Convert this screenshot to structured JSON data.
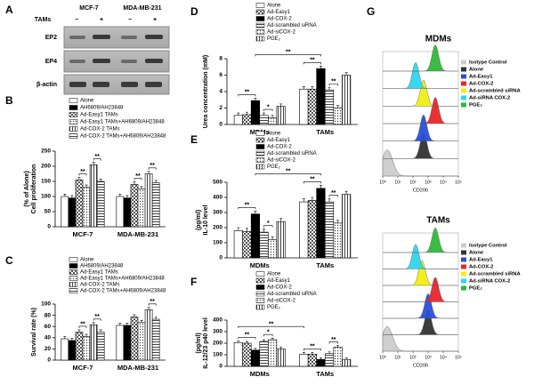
{
  "blot": {
    "panel": "A",
    "groups": [
      "MCF-7",
      "MDA-MB-231"
    ],
    "treatment": "TAMs",
    "conditions": [
      "−",
      "+",
      "−",
      "+"
    ],
    "rows": [
      "EP2",
      "EP4",
      "β-actin"
    ]
  },
  "chart_data": [
    {
      "type": "bar",
      "panel": "B",
      "ylabel": [
        "Cell proliferation",
        "(% of Alone)"
      ],
      "categories": [
        "MCF-7",
        "MDA-MB-231"
      ],
      "ylim": [
        0,
        250
      ],
      "yticks": [
        0,
        50,
        100,
        150,
        200,
        250
      ],
      "series": [
        {
          "name": "Alone",
          "color": "#ffffff",
          "pattern": "none",
          "values": [
            100,
            100
          ],
          "errors": [
            8,
            8
          ]
        },
        {
          "name": "AH6809/AH23848",
          "color": "#000000",
          "pattern": "none",
          "values": [
            95,
            95
          ],
          "errors": [
            8,
            8
          ]
        },
        {
          "name": "Ad-Easy1 TAMs",
          "color": "#555555",
          "pattern": "checker",
          "values": [
            155,
            140
          ],
          "errors": [
            8,
            8
          ]
        },
        {
          "name": "Ad-Easy1 TAMs+AH6809/AH23848",
          "color": "#555555",
          "pattern": "dots",
          "values": [
            130,
            125
          ],
          "errors": [
            8,
            8
          ]
        },
        {
          "name": "Ad-COX-2 TAMs",
          "color": "#555555",
          "pattern": "vstripe",
          "values": [
            205,
            175
          ],
          "errors": [
            8,
            8
          ]
        },
        {
          "name": "Ad-COX-2 TAMs+AH6809/AH23848",
          "color": "#555555",
          "pattern": "hstripe",
          "values": [
            150,
            145
          ],
          "errors": [
            8,
            8
          ]
        }
      ],
      "brackets": [
        {
          "label": "**",
          "from": [
            0,
            2
          ],
          "to": [
            0,
            3
          ]
        },
        {
          "label": "**",
          "from": [
            0,
            4
          ],
          "to": [
            0,
            5
          ]
        },
        {
          "label": "**",
          "from": [
            1,
            2
          ],
          "to": [
            1,
            3
          ]
        },
        {
          "label": "**",
          "from": [
            1,
            4
          ],
          "to": [
            1,
            5
          ]
        }
      ]
    },
    {
      "type": "bar",
      "panel": "C",
      "ylabel": [
        "Survival rate (%)"
      ],
      "categories": [
        "MCF-7",
        "MDA-MB-231"
      ],
      "ylim": [
        0,
        100
      ],
      "yticks": [
        0,
        20,
        40,
        60,
        80,
        100
      ],
      "series": [
        {
          "name": "Alone",
          "color": "#ffffff",
          "pattern": "none",
          "values": [
            38,
            62
          ],
          "errors": [
            4,
            4
          ]
        },
        {
          "name": "AH6809/AH23848",
          "color": "#000000",
          "pattern": "none",
          "values": [
            35,
            62
          ],
          "errors": [
            4,
            4
          ]
        },
        {
          "name": "Ad-Easy1 TAMs",
          "color": "#555555",
          "pattern": "checker",
          "values": [
            50,
            77
          ],
          "errors": [
            4,
            4
          ]
        },
        {
          "name": "Ad-Easy1 TAMs+AH6809/AH23848",
          "color": "#555555",
          "pattern": "dots",
          "values": [
            42,
            67
          ],
          "errors": [
            4,
            4
          ]
        },
        {
          "name": "Ad-COX-2 TAMs",
          "color": "#555555",
          "pattern": "vstripe",
          "values": [
            63,
            90
          ],
          "errors": [
            4,
            4
          ]
        },
        {
          "name": "Ad-COX-2 TAMs+AH6809/AH23848",
          "color": "#555555",
          "pattern": "hstripe",
          "values": [
            50,
            73
          ],
          "errors": [
            4,
            4
          ]
        }
      ],
      "brackets": [
        {
          "label": "**",
          "from": [
            0,
            2
          ],
          "to": [
            0,
            3
          ]
        },
        {
          "label": "**",
          "from": [
            0,
            4
          ],
          "to": [
            0,
            5
          ]
        },
        {
          "label": "**",
          "from": [
            1,
            4
          ],
          "to": [
            1,
            5
          ]
        }
      ]
    },
    {
      "type": "bar",
      "panel": "D",
      "ylabel": [
        "Urea concentration (mM)"
      ],
      "categories": [
        "MDMs",
        "TAMs"
      ],
      "ylim": [
        0,
        8
      ],
      "yticks": [
        0,
        2,
        4,
        6,
        8
      ],
      "series": [
        {
          "name": "Alone",
          "color": "#ffffff",
          "pattern": "none",
          "values": [
            1.1,
            4.3
          ],
          "errors": [
            0.3,
            0.3
          ]
        },
        {
          "name": "Ad-Easy1",
          "color": "#555555",
          "pattern": "checker",
          "values": [
            1.2,
            4.3
          ],
          "errors": [
            0.3,
            0.3
          ]
        },
        {
          "name": "Ad-COX-2",
          "color": "#000000",
          "pattern": "none",
          "values": [
            2.9,
            6.8
          ],
          "errors": [
            0.3,
            0.3
          ]
        },
        {
          "name": "Ad-scrambled siRNA",
          "color": "#555555",
          "pattern": "hstripe",
          "values": [
            1.1,
            4.2
          ],
          "errors": [
            0.3,
            0.3
          ]
        },
        {
          "name": "Ad-siCOX-2",
          "color": "#555555",
          "pattern": "dots",
          "values": [
            0.8,
            2.0
          ],
          "errors": [
            0.3,
            0.3
          ]
        },
        {
          "name": "PGE₂",
          "color": "#555555",
          "pattern": "vstripe",
          "values": [
            2.2,
            6.0
          ],
          "errors": [
            0.3,
            0.3
          ]
        }
      ],
      "brackets": [
        {
          "label": "**",
          "from": [
            0,
            0
          ],
          "to": [
            0,
            2
          ]
        },
        {
          "label": "*",
          "from": [
            0,
            3
          ],
          "to": [
            0,
            4
          ]
        },
        {
          "label": "**",
          "from": [
            1,
            0
          ],
          "to": [
            1,
            2
          ]
        },
        {
          "label": "**",
          "from": [
            1,
            3
          ],
          "to": [
            1,
            4
          ]
        },
        {
          "label": "**",
          "from": [
            0,
            2
          ],
          "to": [
            1,
            2
          ]
        }
      ]
    },
    {
      "type": "bar",
      "panel": "E",
      "ylabel": [
        "IL-10 level",
        "(pg/ml)"
      ],
      "categories": [
        "MDMs",
        "TAMs"
      ],
      "ylim": [
        0,
        500
      ],
      "yticks": [
        0,
        100,
        200,
        300,
        400,
        500
      ],
      "series": [
        {
          "name": "Alone",
          "color": "#ffffff",
          "pattern": "none",
          "values": [
            180,
            370
          ],
          "errors": [
            20,
            20
          ]
        },
        {
          "name": "Ad-Easy1",
          "color": "#555555",
          "pattern": "checker",
          "values": [
            175,
            380
          ],
          "errors": [
            20,
            20
          ]
        },
        {
          "name": "Ad-COX-2",
          "color": "#000000",
          "pattern": "none",
          "values": [
            290,
            460
          ],
          "errors": [
            20,
            20
          ]
        },
        {
          "name": "Ad-scrambled siRNA",
          "color": "#555555",
          "pattern": "hstripe",
          "values": [
            170,
            370
          ],
          "errors": [
            20,
            20
          ]
        },
        {
          "name": "Ad-siCOX-2",
          "color": "#555555",
          "pattern": "dots",
          "values": [
            120,
            230
          ],
          "errors": [
            20,
            20
          ]
        },
        {
          "name": "PGE₂",
          "color": "#555555",
          "pattern": "vstripe",
          "values": [
            240,
            420
          ],
          "errors": [
            20,
            20
          ]
        }
      ],
      "brackets": [
        {
          "label": "**",
          "from": [
            0,
            0
          ],
          "to": [
            0,
            2
          ]
        },
        {
          "label": "*",
          "from": [
            0,
            3
          ],
          "to": [
            0,
            4
          ]
        },
        {
          "label": "**",
          "from": [
            1,
            0
          ],
          "to": [
            1,
            2
          ]
        },
        {
          "label": "**",
          "from": [
            1,
            3
          ],
          "to": [
            1,
            4
          ]
        },
        {
          "label": "**",
          "from": [
            0,
            2
          ],
          "to": [
            1,
            2
          ]
        }
      ]
    },
    {
      "type": "bar",
      "panel": "F",
      "ylabel": [
        "IL-12/23  p40 level",
        "(pg/ml)"
      ],
      "categories": [
        "MDMs",
        "TAMs"
      ],
      "ylim": [
        0,
        400
      ],
      "yticks": [
        0,
        100,
        200,
        300,
        400
      ],
      "series": [
        {
          "name": "Alone",
          "color": "#ffffff",
          "pattern": "none",
          "values": [
            205,
            105
          ],
          "errors": [
            15,
            15
          ]
        },
        {
          "name": "Ad-Easy1",
          "color": "#555555",
          "pattern": "checker",
          "values": [
            200,
            105
          ],
          "errors": [
            15,
            15
          ]
        },
        {
          "name": "Ad-COX-2",
          "color": "#000000",
          "pattern": "none",
          "values": [
            140,
            60
          ],
          "errors": [
            15,
            15
          ]
        },
        {
          "name": "Ad-scrambled siRNA",
          "color": "#555555",
          "pattern": "hstripe",
          "values": [
            215,
            110
          ],
          "errors": [
            15,
            15
          ]
        },
        {
          "name": "Ad-siCOX-2",
          "color": "#555555",
          "pattern": "dots",
          "values": [
            230,
            165
          ],
          "errors": [
            15,
            15
          ]
        },
        {
          "name": "PGE₂",
          "color": "#555555",
          "pattern": "vstripe",
          "values": [
            150,
            60
          ],
          "errors": [
            15,
            15
          ]
        }
      ],
      "brackets": [
        {
          "label": "**",
          "from": [
            0,
            0
          ],
          "to": [
            0,
            2
          ]
        },
        {
          "label": "*",
          "from": [
            0,
            3
          ],
          "to": [
            0,
            4
          ]
        },
        {
          "label": "**",
          "from": [
            1,
            0
          ],
          "to": [
            1,
            2
          ]
        },
        {
          "label": "**",
          "from": [
            1,
            3
          ],
          "to": [
            1,
            4
          ]
        },
        {
          "label": "**",
          "from": [
            0,
            0
          ],
          "to": [
            1,
            0
          ]
        }
      ]
    },
    {
      "type": "ridge",
      "panel": "G",
      "title": "MDMs",
      "xlabel": "CD206",
      "xscale": "log",
      "xlim": [
        1,
        100000
      ],
      "xticks": [
        {
          "value": 1,
          "label": "10⁰"
        },
        {
          "value": 10,
          "label": "10¹"
        },
        {
          "value": 100,
          "label": "10²"
        },
        {
          "value": 1000,
          "label": "10³"
        },
        {
          "value": 10000,
          "label": "10⁴"
        },
        {
          "value": 100000,
          "label": "10⁵"
        }
      ],
      "series": [
        {
          "name": "Isotype Control",
          "color": "#cccccc",
          "values": [
            2
          ]
        },
        {
          "name": "Alone",
          "color": "#333333",
          "values": [
            500
          ]
        },
        {
          "name": "Ad-Easy1",
          "color": "#2a4fd8",
          "values": [
            500
          ]
        },
        {
          "name": "Ad-COX-2",
          "color": "#e8262a",
          "values": [
            3000
          ]
        },
        {
          "name": "Ad-scrambled siRNA",
          "color": "#f2ee10",
          "values": [
            500
          ]
        },
        {
          "name": "Ad-siRNA COX-2",
          "color": "#2fd6ee",
          "values": [
            150
          ]
        },
        {
          "name": "PGE₂",
          "color": "#2fb83a",
          "values": [
            3000
          ]
        }
      ]
    },
    {
      "type": "ridge",
      "title": "TAMs",
      "xlabel": "CD206",
      "xscale": "log",
      "xlim": [
        1,
        100000
      ],
      "xticks": [
        {
          "value": 1,
          "label": "10⁰"
        },
        {
          "value": 10,
          "label": "10¹"
        },
        {
          "value": 100,
          "label": "10²"
        },
        {
          "value": 1000,
          "label": "10³"
        },
        {
          "value": 10000,
          "label": "10⁴"
        },
        {
          "value": 100000,
          "label": "10⁵"
        }
      ],
      "series": [
        {
          "name": "Isotype Control",
          "color": "#cccccc",
          "values": [
            2
          ]
        },
        {
          "name": "Alone",
          "color": "#333333",
          "values": [
            1000
          ]
        },
        {
          "name": "Ad-Easy1",
          "color": "#2a4fd8",
          "values": [
            1000
          ]
        },
        {
          "name": "Ad-COX-2",
          "color": "#e8262a",
          "values": [
            3000
          ]
        },
        {
          "name": "Ad-scrambled siRNA",
          "color": "#f2ee10",
          "values": [
            400
          ]
        },
        {
          "name": "Ad-siRNA COX-2",
          "color": "#2fd6ee",
          "values": [
            150
          ]
        },
        {
          "name": "PGE₂",
          "color": "#2fb83a",
          "values": [
            3000
          ]
        }
      ]
    }
  ]
}
